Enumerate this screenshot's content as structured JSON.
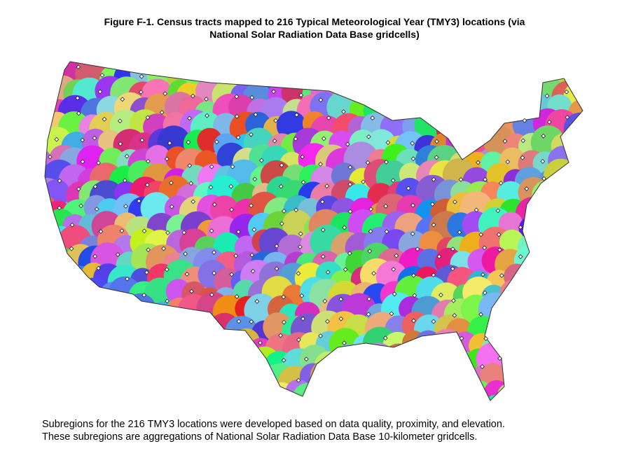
{
  "figure": {
    "title_lines": [
      "Figure F-1. Census tracts mapped to 216 Typical Meteorological Year (TMY3) locations (via",
      "National Solar Radiation Data Base gridcells)"
    ],
    "caption_lines": [
      "Subregions for the 216 TMY3 locations were developed based on data quality, proximity, and elevation.",
      "These subregions are aggregations of National Solar Radiation Data Base 10-kilometer gridcells."
    ]
  }
}
